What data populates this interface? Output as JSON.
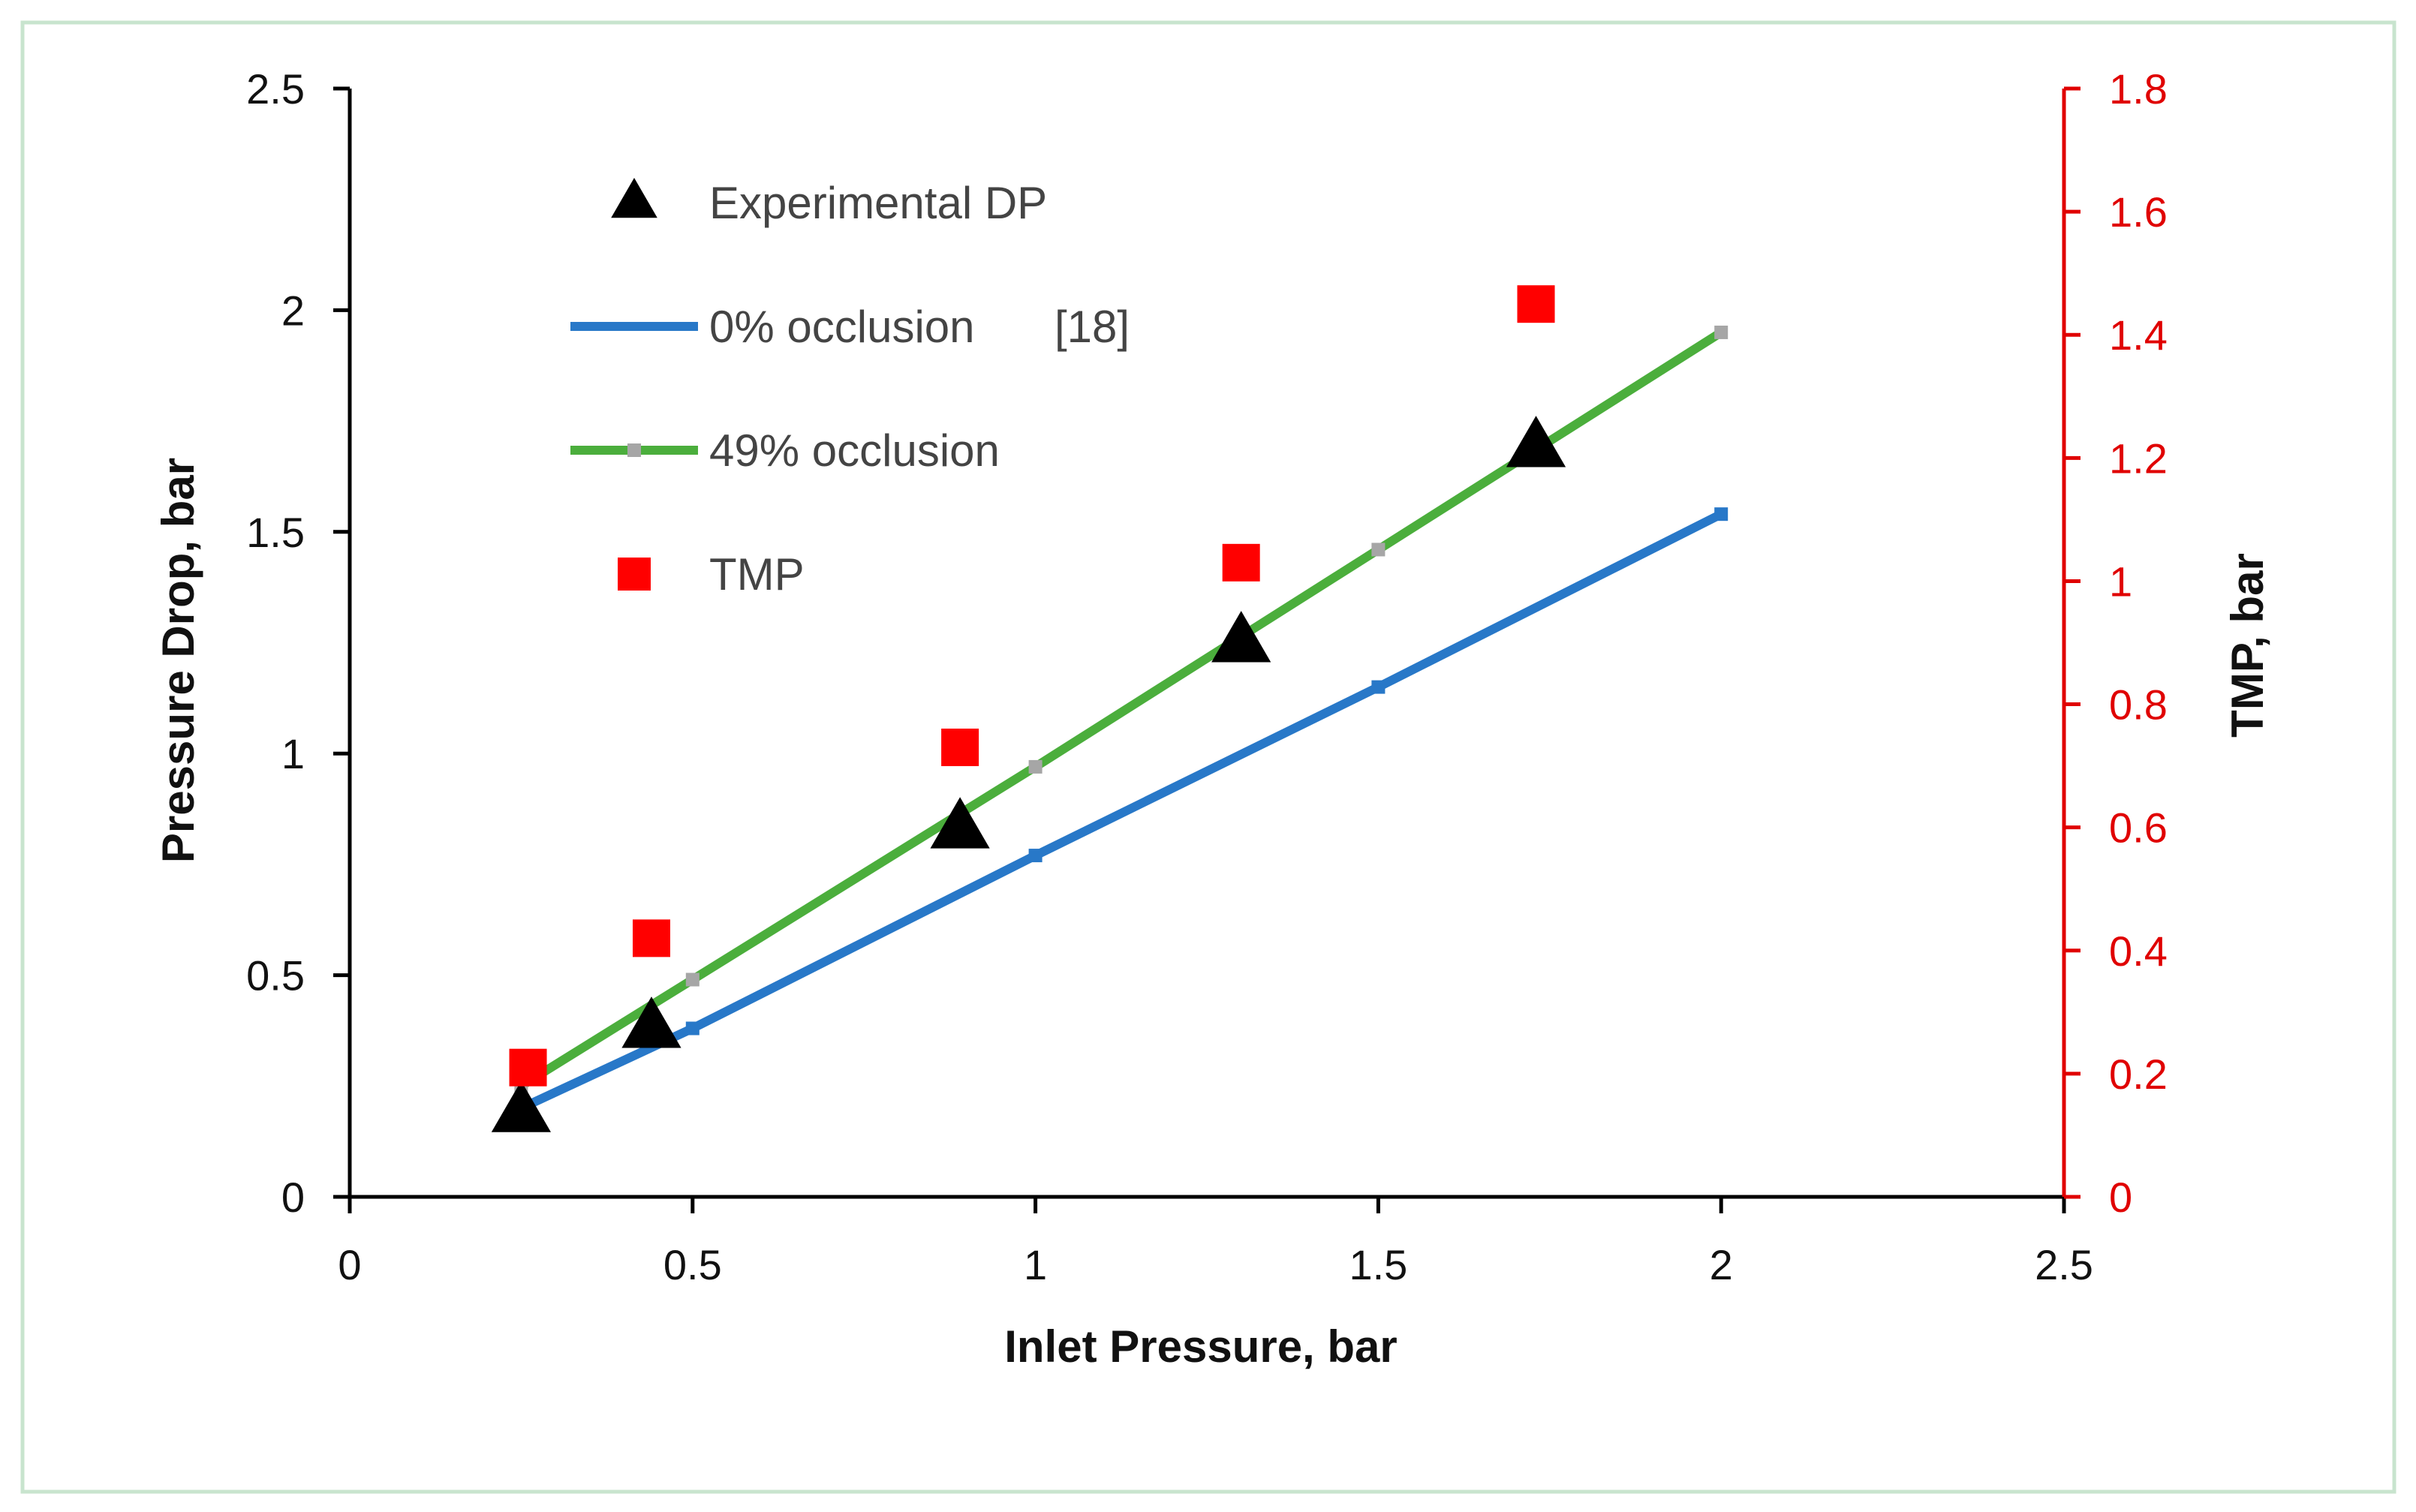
{
  "chart_data": {
    "type": "scatter",
    "xlabel": "Inlet Pressure, bar",
    "ylabel_left": "Pressure Drop, bar",
    "ylabel_right": "TMP, bar",
    "xlim": [
      0,
      2.5
    ],
    "ylim_left": [
      0,
      2.5
    ],
    "ylim_right": [
      0,
      1.8
    ],
    "x_ticks": [
      "0",
      "0.5",
      "1",
      "1.5",
      "2",
      "2.5"
    ],
    "y_left_ticks": [
      "0",
      "0.5",
      "1",
      "1.5",
      "2",
      "2.5"
    ],
    "y_right_ticks": [
      "0",
      "0.2",
      "0.4",
      "0.6",
      "0.8",
      "1",
      "1.2",
      "1.4",
      "1.6",
      "1.8"
    ],
    "grid": false,
    "legend_position": "top-left",
    "series": [
      {
        "name": "Experimental DP",
        "kind": "marker-triangle",
        "axis": "left",
        "color": "#000000",
        "x": [
          0.25,
          0.44,
          0.89,
          1.3,
          1.73
        ],
        "y": [
          0.19,
          0.38,
          0.83,
          1.25,
          1.69
        ]
      },
      {
        "name": "0% occlusion",
        "reference": "[18]",
        "kind": "line",
        "axis": "left",
        "color": "#2878C8",
        "x": [
          0.25,
          0.5,
          1.0,
          1.5,
          2.0
        ],
        "y": [
          0.2,
          0.38,
          0.77,
          1.15,
          1.54
        ]
      },
      {
        "name": "49% occlusion",
        "kind": "line",
        "axis": "left",
        "color": "#4BAE3C",
        "marker_color": "#A6A6A6",
        "x": [
          0.25,
          0.5,
          1.0,
          1.5,
          2.0
        ],
        "y": [
          0.25,
          0.49,
          0.97,
          1.46,
          1.95
        ]
      },
      {
        "name": "TMP",
        "kind": "marker-square",
        "axis": "right",
        "color": "#FF0000",
        "x": [
          0.26,
          0.44,
          0.89,
          1.3,
          1.73
        ],
        "y": [
          0.21,
          0.42,
          0.73,
          1.03,
          1.45
        ]
      }
    ],
    "colors": {
      "axis": "#000000",
      "right_axis": "#E00000",
      "frame": "#C8E4CE"
    }
  }
}
